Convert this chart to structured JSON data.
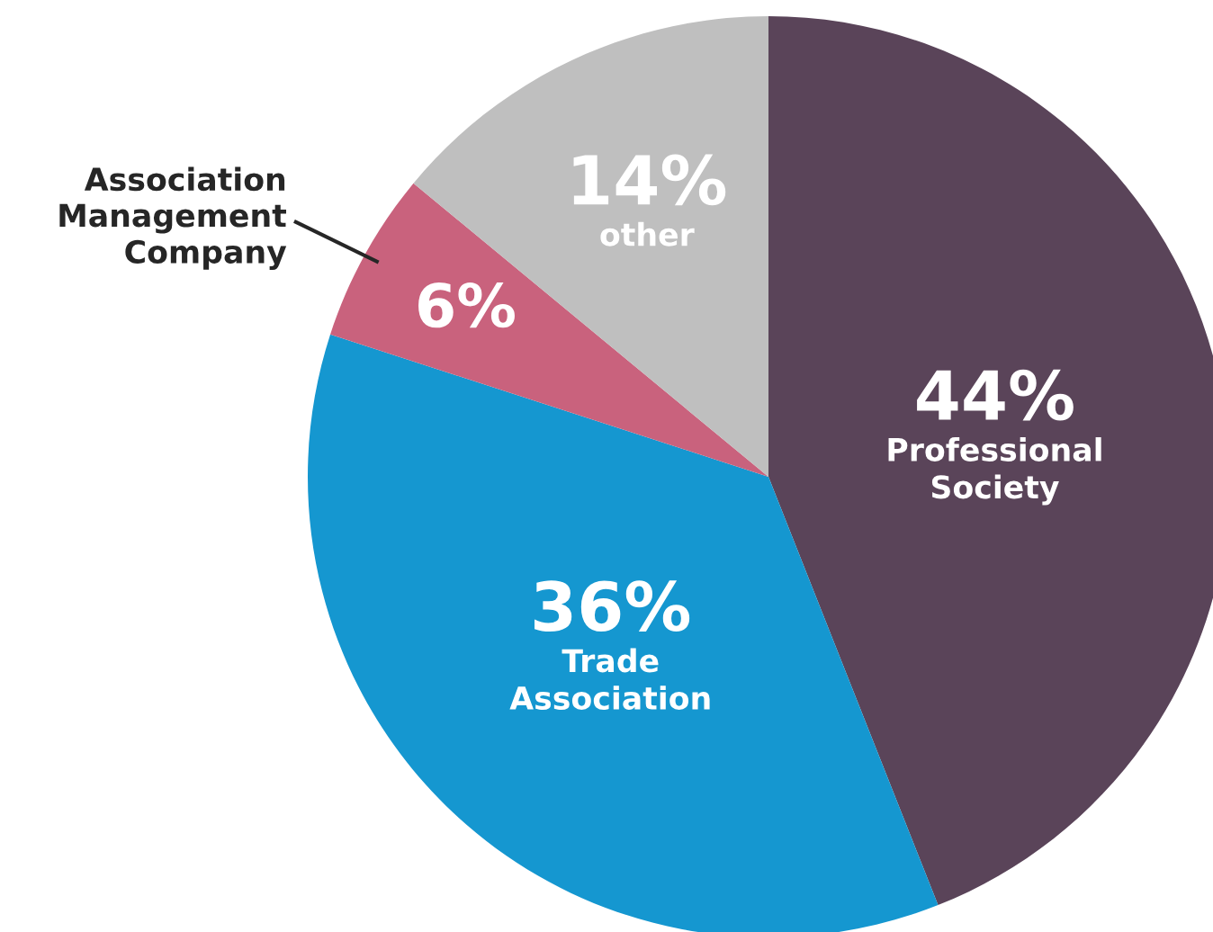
{
  "chart_data": {
    "type": "pie",
    "categories": [
      "Professional Society",
      "Trade Association",
      "Association Management Company",
      "other"
    ],
    "values": [
      44,
      36,
      6,
      14
    ],
    "value_labels": [
      "44%",
      "36%",
      "6%",
      "14%"
    ],
    "colors": [
      "#5a4459",
      "#1597d0",
      "#c9627d",
      "#bfbfbf"
    ]
  }
}
